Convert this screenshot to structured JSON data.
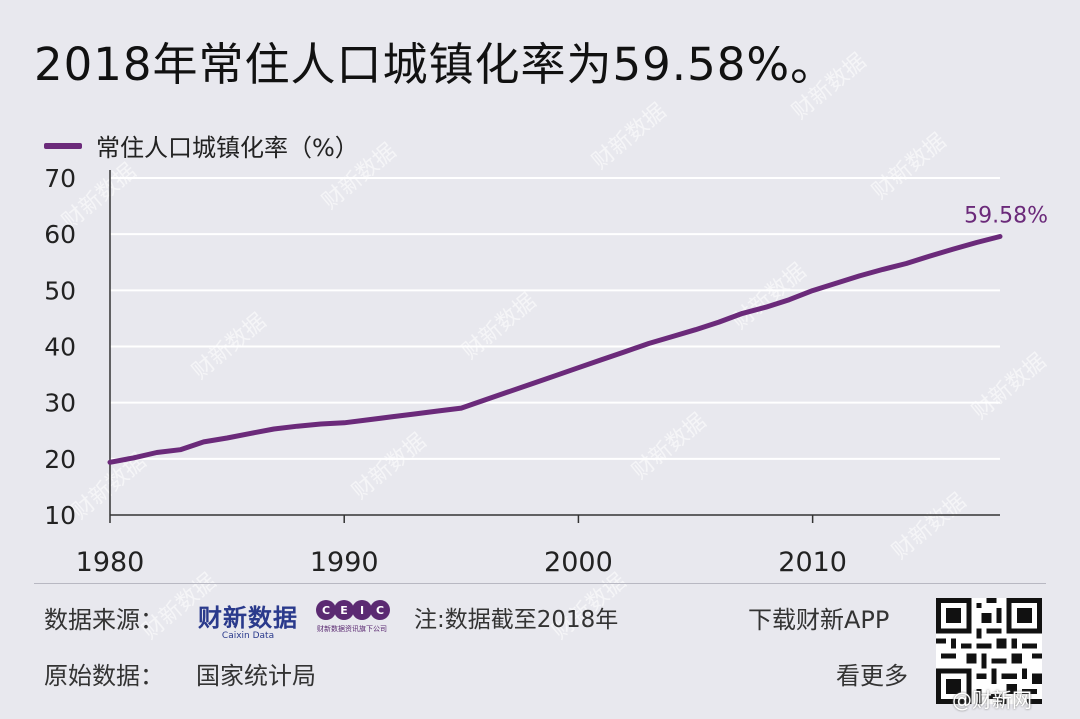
{
  "title": "2018年常住人口城镇化率为59.58%。",
  "legend": {
    "label": "常住人口城镇化率（%）",
    "color": "#6b2a7a"
  },
  "chart_data": {
    "type": "line",
    "title": "2018年常住人口城镇化率为59.58%。",
    "ylabel": "常住人口城镇化率（%）",
    "xlabel": "",
    "xlim": [
      1980,
      2018
    ],
    "ylim": [
      10,
      70
    ],
    "x_ticks": [
      "1980",
      "1990",
      "2000",
      "2010"
    ],
    "y_ticks": [
      "10",
      "20",
      "30",
      "40",
      "50",
      "60",
      "70"
    ],
    "grid": "horizontal",
    "series": [
      {
        "name": "常住人口城镇化率（%）",
        "color": "#6b2a7a",
        "x": [
          1980,
          1981,
          1982,
          1983,
          1984,
          1985,
          1986,
          1987,
          1988,
          1989,
          1990,
          1991,
          1992,
          1993,
          1994,
          1995,
          1996,
          1997,
          1998,
          1999,
          2000,
          2001,
          2002,
          2003,
          2004,
          2005,
          2006,
          2007,
          2008,
          2009,
          2010,
          2011,
          2012,
          2013,
          2014,
          2015,
          2016,
          2017,
          2018
        ],
        "values": [
          19.39,
          20.16,
          21.13,
          21.62,
          23.01,
          23.71,
          24.52,
          25.32,
          25.81,
          26.21,
          26.41,
          26.94,
          27.46,
          27.99,
          28.51,
          29.04,
          30.48,
          31.91,
          33.35,
          34.78,
          36.22,
          37.66,
          39.09,
          40.53,
          41.76,
          42.99,
          44.34,
          45.89,
          46.99,
          48.34,
          49.95,
          51.27,
          52.57,
          53.73,
          54.77,
          56.1,
          57.35,
          58.52,
          59.58
        ]
      }
    ],
    "annotations": [
      {
        "x": 2018,
        "text": "59.58%"
      }
    ]
  },
  "footer": {
    "source_label": "数据来源：",
    "source_logo_main": "财新数据",
    "source_logo_sub": "Caixin Data",
    "ceic_letters": [
      "C",
      "E",
      "I",
      "C"
    ],
    "ceic_sub": "财新数据资讯旗下公司",
    "note": "注:数据截至2018年",
    "download": "下载财新APP",
    "more": "看更多",
    "original_label": "原始数据：",
    "original_value": "国家统计局",
    "weibo": "@财新网"
  },
  "watermark": "财新数据"
}
